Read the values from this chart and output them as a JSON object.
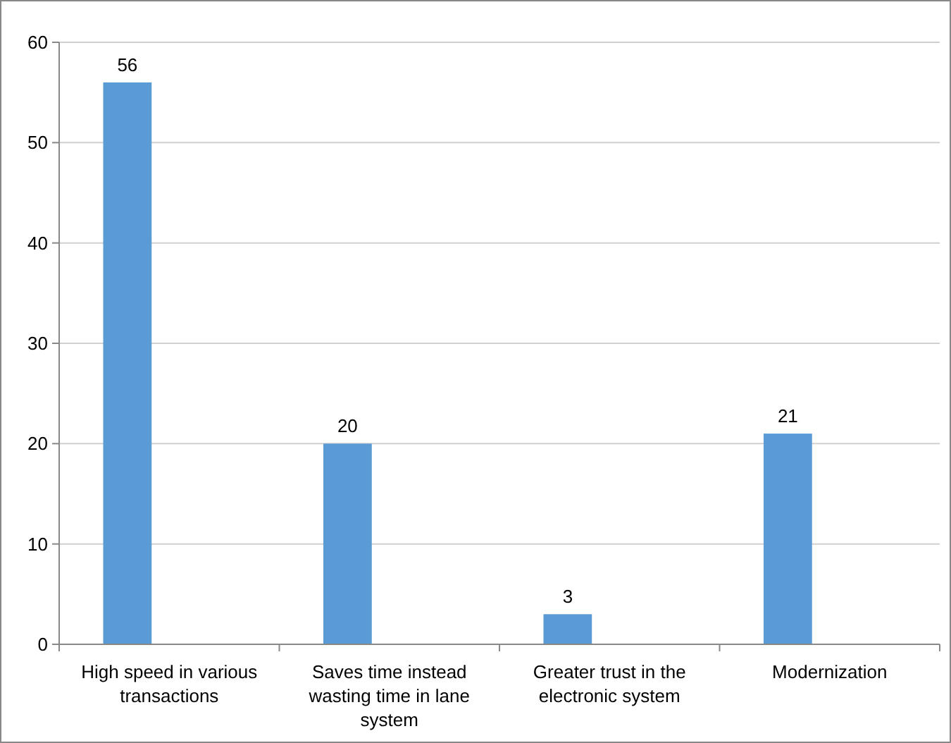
{
  "chart_data": {
    "type": "bar",
    "categories": [
      "High speed in various transactions",
      "Saves time instead wasting time in lane system",
      "Greater trust in the electronic system",
      "Modernization"
    ],
    "values": [
      56,
      20,
      3,
      21
    ],
    "color": "#5b9bd5",
    "ylim": [
      0,
      60
    ],
    "yticks": [
      0,
      10,
      20,
      30,
      40,
      50,
      60
    ],
    "grid": "y",
    "data_labels": true
  }
}
